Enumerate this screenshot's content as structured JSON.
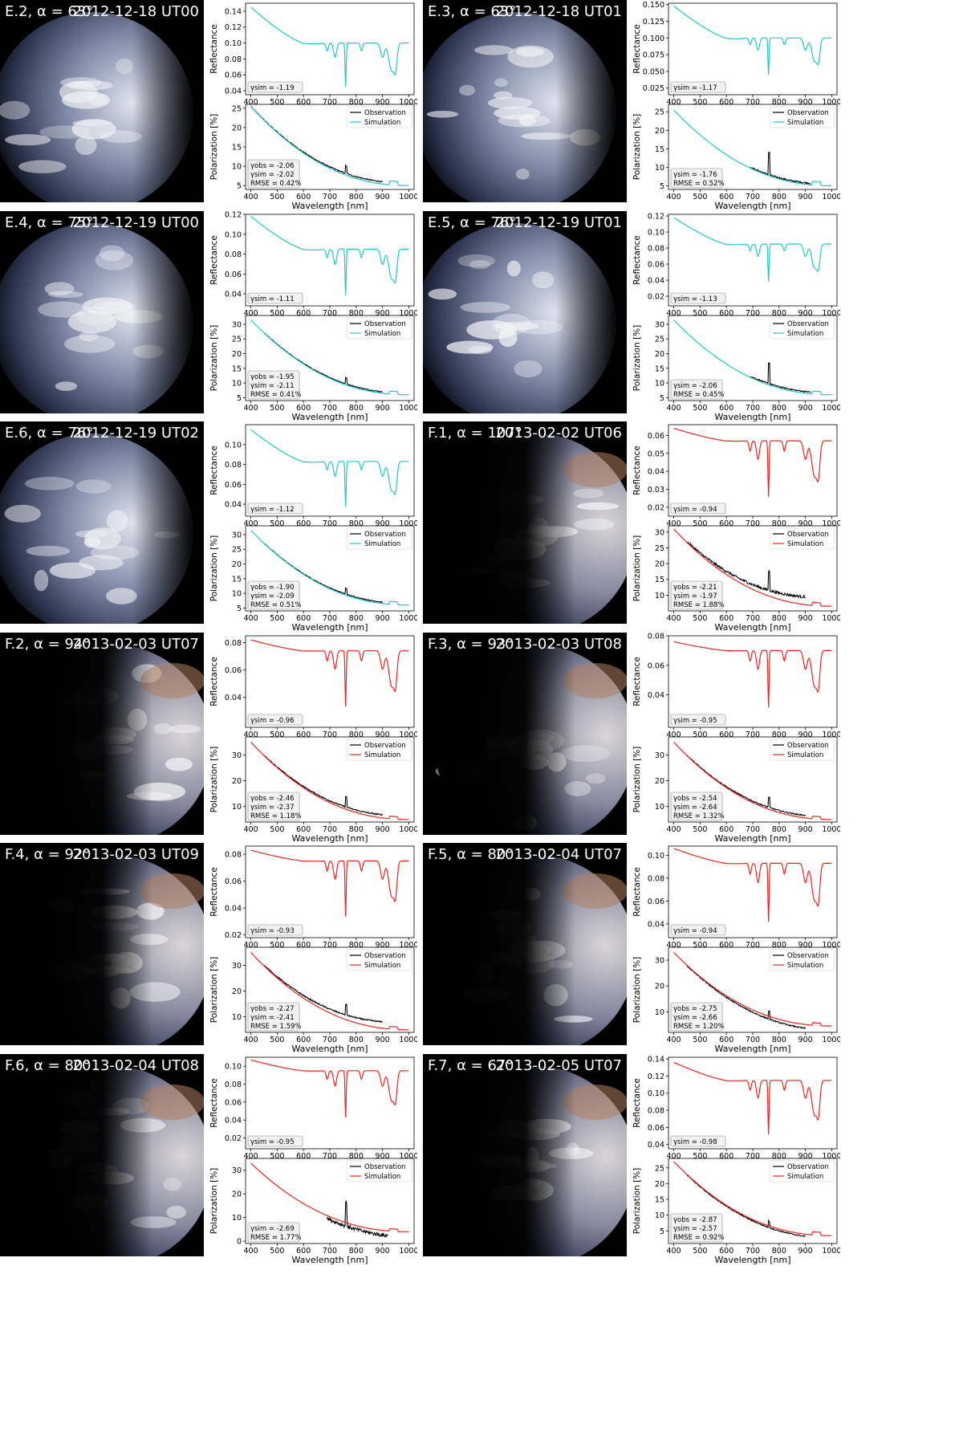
{
  "colors": {
    "obs": "#000000",
    "sim_E": "#1fc7d1",
    "sim_F": "#e8261c"
  },
  "common": {
    "xlabel": "Wavelength [nm]",
    "ylabel_refl": "Reflectance",
    "ylabel_pol": "Polarization [%]",
    "legend_obs": "Observation",
    "legend_sim": "Simulation"
  },
  "panels": [
    {
      "id": "E.2",
      "alpha": "E.2, α = 63°",
      "time": "2012-12-18 UT00",
      "group": "E",
      "earth": "E",
      "refl": {
        "ylim": [
          0.035,
          0.15
        ],
        "ticks": [
          "0.04",
          "0.06",
          "0.08",
          "0.10",
          "0.12",
          "0.14"
        ],
        "tickvals": [
          0.04,
          0.06,
          0.08,
          0.1,
          0.12,
          0.14
        ],
        "start": 0.145,
        "base": 0.1,
        "box": "γsim = -1.19"
      },
      "pol": {
        "ylim": [
          4,
          26
        ],
        "ticks": [
          "5",
          "10",
          "15",
          "20",
          "25"
        ],
        "tickvals": [
          5,
          10,
          15,
          20,
          25
        ],
        "sim_start": 25.5,
        "sim_end": 5.0,
        "obs_start": 400,
        "obs_end": 900,
        "obs_offset": 0.6,
        "spike": 2.0,
        "noise": 0.3,
        "box": [
          "γobs = -2.06",
          "γsim = -2.02",
          "RMSE = 0.42%"
        ]
      }
    },
    {
      "id": "E.3",
      "alpha": "E.3, α = 63°",
      "time": "2012-12-18 UT01",
      "group": "E",
      "earth": "E",
      "refl": {
        "ylim": [
          0.015,
          0.152
        ],
        "ticks": [
          "0.025",
          "0.050",
          "0.075",
          "0.100",
          "0.125",
          "0.150"
        ],
        "tickvals": [
          0.025,
          0.05,
          0.075,
          0.1,
          0.125,
          0.15
        ],
        "start": 0.148,
        "base": 0.1,
        "box": "γsim = -1.17"
      },
      "pol": {
        "ylim": [
          4,
          27
        ],
        "ticks": [
          "5",
          "10",
          "15",
          "20",
          "25"
        ],
        "tickvals": [
          5,
          10,
          15,
          20,
          25
        ],
        "sim_start": 25.5,
        "sim_end": 5.0,
        "obs_start": 690,
        "obs_end": 920,
        "obs_offset": 0.4,
        "spike": 6.0,
        "noise": 0.4,
        "box": [
          "γsim = -1.76",
          "RMSE = 0.52%"
        ]
      }
    },
    {
      "id": "E.4",
      "alpha": "E.4, α = 75°",
      "time": "2012-12-19 UT00",
      "group": "E",
      "earth": "E",
      "refl": {
        "ylim": [
          0.028,
          0.12
        ],
        "ticks": [
          "0.04",
          "0.06",
          "0.08",
          "0.10",
          "0.12"
        ],
        "tickvals": [
          0.04,
          0.06,
          0.08,
          0.1,
          0.12
        ],
        "start": 0.118,
        "base": 0.085,
        "box": "γsim = -1.11"
      },
      "pol": {
        "ylim": [
          4,
          33
        ],
        "ticks": [
          "5",
          "10",
          "15",
          "20",
          "25",
          "30"
        ],
        "tickvals": [
          5,
          10,
          15,
          20,
          25,
          30
        ],
        "sim_start": 31.5,
        "sim_end": 6.0,
        "obs_start": 450,
        "obs_end": 900,
        "obs_offset": 0.5,
        "spike": 2.0,
        "noise": 0.3,
        "box": [
          "γobs = -1.95",
          "γsim = -2.11",
          "RMSE = 0.41%"
        ]
      }
    },
    {
      "id": "E.5",
      "alpha": "E.5, α = 76°",
      "time": "2012-12-19 UT01",
      "group": "E",
      "earth": "E",
      "refl": {
        "ylim": [
          0.008,
          0.122
        ],
        "ticks": [
          "0.02",
          "0.04",
          "0.06",
          "0.08",
          "0.10",
          "0.12"
        ],
        "tickvals": [
          0.02,
          0.04,
          0.06,
          0.08,
          0.1,
          0.12
        ],
        "start": 0.118,
        "base": 0.085,
        "box": "γsim = -1.13"
      },
      "pol": {
        "ylim": [
          4,
          33
        ],
        "ticks": [
          "5",
          "10",
          "15",
          "20",
          "25",
          "30"
        ],
        "tickvals": [
          5,
          10,
          15,
          20,
          25,
          30
        ],
        "sim_start": 31.5,
        "sim_end": 6.0,
        "obs_start": 690,
        "obs_end": 920,
        "obs_offset": 0.6,
        "spike": 7.0,
        "noise": 0.4,
        "box": [
          "γsim = -2.06",
          "RMSE = 0.45%"
        ]
      }
    },
    {
      "id": "E.6",
      "alpha": "E.6, α = 76°",
      "time": "2012-12-19 UT02",
      "group": "E",
      "earth": "E",
      "refl": {
        "ylim": [
          0.028,
          0.12
        ],
        "ticks": [
          "0.04",
          "0.06",
          "0.08",
          "0.10"
        ],
        "tickvals": [
          0.04,
          0.06,
          0.08,
          0.1
        ],
        "start": 0.115,
        "base": 0.083,
        "box": "γsim = -1.12"
      },
      "pol": {
        "ylim": [
          4,
          33
        ],
        "ticks": [
          "5",
          "10",
          "15",
          "20",
          "25",
          "30"
        ],
        "tickvals": [
          5,
          10,
          15,
          20,
          25,
          30
        ],
        "sim_start": 31.5,
        "sim_end": 6.0,
        "obs_start": 450,
        "obs_end": 900,
        "obs_offset": 0.5,
        "spike": 2.0,
        "noise": 0.3,
        "box": [
          "γobs = -1.90",
          "γsim = -2.09",
          "RMSE = 0.51%"
        ]
      }
    },
    {
      "id": "F.1",
      "alpha": "F.1, α = 107°",
      "time": "2013-02-02 UT06",
      "group": "F",
      "earth": "F",
      "refl": {
        "ylim": [
          0.015,
          0.066
        ],
        "ticks": [
          "0.02",
          "0.03",
          "0.04",
          "0.05",
          "0.06"
        ],
        "tickvals": [
          0.02,
          0.03,
          0.04,
          0.05,
          0.06
        ],
        "start": 0.064,
        "base": 0.057,
        "box": "γsim = -0.94"
      },
      "pol": {
        "ylim": [
          5,
          32
        ],
        "ticks": [
          "10",
          "15",
          "20",
          "25",
          "30"
        ],
        "tickvals": [
          10,
          15,
          20,
          25,
          30
        ],
        "sim_start": 31,
        "sim_end": 6.5,
        "obs_start": 450,
        "obs_end": 900,
        "obs_offset": 2.5,
        "spike": 6.0,
        "noise": 0.8,
        "box": [
          "γobs = -2.21",
          "γsim = -1.97",
          "RMSE = 1.88%"
        ]
      }
    },
    {
      "id": "F.2",
      "alpha": "F.2, α = 94°",
      "time": "2013-02-03 UT07",
      "group": "F",
      "earth": "F",
      "refl": {
        "ylim": [
          0.018,
          0.085
        ],
        "ticks": [
          "0.04",
          "0.06",
          "0.08"
        ],
        "tickvals": [
          0.04,
          0.06,
          0.08
        ],
        "start": 0.082,
        "base": 0.074,
        "box": "γsim = -0.96"
      },
      "pol": {
        "ylim": [
          4,
          37
        ],
        "ticks": [
          "10",
          "20",
          "30"
        ],
        "tickvals": [
          10,
          20,
          30
        ],
        "sim_start": 35,
        "sim_end": 5.0,
        "obs_start": 450,
        "obs_end": 900,
        "obs_offset": 1.2,
        "spike": 4.0,
        "noise": 0.5,
        "box": [
          "γobs = -2.46",
          "γsim = -2.37",
          "RMSE = 1.18%"
        ]
      }
    },
    {
      "id": "F.3",
      "alpha": "F.3, α = 93°",
      "time": "2013-02-03 UT08",
      "group": "F",
      "earth": "F",
      "refl": {
        "ylim": [
          0.018,
          0.08
        ],
        "ticks": [
          "0.04",
          "0.06",
          "0.08"
        ],
        "tickvals": [
          0.04,
          0.06,
          0.08
        ],
        "start": 0.076,
        "base": 0.07,
        "box": "γsim = -0.95"
      },
      "pol": {
        "ylim": [
          4,
          37
        ],
        "ticks": [
          "10",
          "20",
          "30"
        ],
        "tickvals": [
          10,
          20,
          30
        ],
        "sim_start": 35,
        "sim_end": 5.0,
        "obs_start": 450,
        "obs_end": 900,
        "obs_offset": 1.0,
        "spike": 4.0,
        "noise": 0.5,
        "box": [
          "γobs = -2.54",
          "γsim = -2.64",
          "RMSE = 1.32%"
        ]
      }
    },
    {
      "id": "F.4",
      "alpha": "F.4, α = 92°",
      "time": "2013-02-03 UT09",
      "group": "F",
      "earth": "F",
      "refl": {
        "ylim": [
          0.018,
          0.086
        ],
        "ticks": [
          "0.02",
          "0.04",
          "0.06",
          "0.08"
        ],
        "tickvals": [
          0.02,
          0.04,
          0.06,
          0.08
        ],
        "start": 0.083,
        "base": 0.075,
        "box": "γsim = -0.93"
      },
      "pol": {
        "ylim": [
          4,
          37
        ],
        "ticks": [
          "10",
          "20",
          "30"
        ],
        "tickvals": [
          10,
          20,
          30
        ],
        "sim_start": 35,
        "sim_end": 5.0,
        "obs_start": 450,
        "obs_end": 900,
        "obs_offset": 2.5,
        "spike": 4.0,
        "noise": 0.5,
        "box": [
          "γobs = -2.27",
          "γsim = -2.41",
          "RMSE = 1.59%"
        ]
      }
    },
    {
      "id": "F.5",
      "alpha": "F.5, α = 80°",
      "time": "2013-02-04 UT07",
      "group": "F",
      "earth": "F",
      "refl": {
        "ylim": [
          0.028,
          0.108
        ],
        "ticks": [
          "0.04",
          "0.06",
          "0.08",
          "0.10"
        ],
        "tickvals": [
          0.04,
          0.06,
          0.08,
          0.1
        ],
        "start": 0.106,
        "base": 0.093,
        "box": "γsim = -0.94"
      },
      "pol": {
        "ylim": [
          2,
          35
        ],
        "ticks": [
          "10",
          "20",
          "30"
        ],
        "tickvals": [
          10,
          20,
          30
        ],
        "sim_start": 33,
        "sim_end": 4.5,
        "obs_start": 450,
        "obs_end": 900,
        "obs_offset": -1.5,
        "spike": 3.0,
        "noise": 0.5,
        "box": [
          "γobs = -2.75",
          "γsim = -2.66",
          "RMSE = 1.20%"
        ]
      }
    },
    {
      "id": "F.6",
      "alpha": "F.6, α = 80°",
      "time": "2013-02-04 UT08",
      "group": "F",
      "earth": "F",
      "refl": {
        "ylim": [
          0.008,
          0.11
        ],
        "ticks": [
          "0.02",
          "0.04",
          "0.06",
          "0.08",
          "0.10"
        ],
        "tickvals": [
          0.02,
          0.04,
          0.06,
          0.08,
          0.1
        ],
        "start": 0.107,
        "base": 0.095,
        "box": "γsim = -0.95"
      },
      "pol": {
        "ylim": [
          -1,
          35
        ],
        "ticks": [
          "0",
          "10",
          "20",
          "30"
        ],
        "tickvals": [
          0,
          10,
          20,
          30
        ],
        "sim_start": 33,
        "sim_end": 4.0,
        "obs_start": 690,
        "obs_end": 920,
        "obs_offset": -2.0,
        "spike": 10.0,
        "noise": 1.5,
        "box": [
          "γsim = -2.69",
          "RMSE = 1.77%"
        ]
      }
    },
    {
      "id": "F.7",
      "alpha": "F.7, α = 67°",
      "time": "2013-02-05 UT07",
      "group": "F",
      "earth": "F",
      "refl": {
        "ylim": [
          0.035,
          0.142
        ],
        "ticks": [
          "0.04",
          "0.06",
          "0.08",
          "0.10",
          "0.12",
          "0.14"
        ],
        "tickvals": [
          0.04,
          0.06,
          0.08,
          0.1,
          0.12,
          0.14
        ],
        "start": 0.136,
        "base": 0.115,
        "box": "γsim = -0.98"
      },
      "pol": {
        "ylim": [
          1,
          28
        ],
        "ticks": [
          "5",
          "10",
          "15",
          "20",
          "25"
        ],
        "tickvals": [
          5,
          10,
          15,
          20,
          25
        ],
        "sim_start": 27,
        "sim_end": 3.5,
        "obs_start": 450,
        "obs_end": 900,
        "obs_offset": -0.7,
        "spike": 2.0,
        "noise": 0.4,
        "box": [
          "γobs = -2.87",
          "γsim = -2.57",
          "RMSE = 0.92%"
        ]
      }
    }
  ],
  "chart_data": {
    "type": "line",
    "description": "Reflectance and polarization spectra (400–1000 nm) for 12 Earth observations with simulations",
    "xlabel": "Wavelength [nm]",
    "xlim": [
      380,
      1020
    ],
    "xticks": [
      400,
      500,
      600,
      700,
      800,
      900,
      1000
    ],
    "series": [
      {
        "panel": "E.2",
        "reflectance_gamma_sim": -1.19,
        "gamma_obs": -2.06,
        "gamma_sim": -2.02,
        "rmse_percent": 0.42
      },
      {
        "panel": "E.3",
        "reflectance_gamma_sim": -1.17,
        "gamma_sim": -1.76,
        "rmse_percent": 0.52
      },
      {
        "panel": "E.4",
        "reflectance_gamma_sim": -1.11,
        "gamma_obs": -1.95,
        "gamma_sim": -2.11,
        "rmse_percent": 0.41
      },
      {
        "panel": "E.5",
        "reflectance_gamma_sim": -1.13,
        "gamma_sim": -2.06,
        "rmse_percent": 0.45
      },
      {
        "panel": "E.6",
        "reflectance_gamma_sim": -1.12,
        "gamma_obs": -1.9,
        "gamma_sim": -2.09,
        "rmse_percent": 0.51
      },
      {
        "panel": "F.1",
        "reflectance_gamma_sim": -0.94,
        "gamma_obs": -2.21,
        "gamma_sim": -1.97,
        "rmse_percent": 1.88
      },
      {
        "panel": "F.2",
        "reflectance_gamma_sim": -0.96,
        "gamma_obs": -2.46,
        "gamma_sim": -2.37,
        "rmse_percent": 1.18
      },
      {
        "panel": "F.3",
        "reflectance_gamma_sim": -0.95,
        "gamma_obs": -2.54,
        "gamma_sim": -2.64,
        "rmse_percent": 1.32
      },
      {
        "panel": "F.4",
        "reflectance_gamma_sim": -0.93,
        "gamma_obs": -2.27,
        "gamma_sim": -2.41,
        "rmse_percent": 1.59
      },
      {
        "panel": "F.5",
        "reflectance_gamma_sim": -0.94,
        "gamma_obs": -2.75,
        "gamma_sim": -2.66,
        "rmse_percent": 1.2
      },
      {
        "panel": "F.6",
        "reflectance_gamma_sim": -0.95,
        "gamma_sim": -2.69,
        "rmse_percent": 1.77
      },
      {
        "panel": "F.7",
        "reflectance_gamma_sim": -0.98,
        "gamma_obs": -2.87,
        "gamma_sim": -2.57,
        "rmse_percent": 0.92
      }
    ]
  }
}
